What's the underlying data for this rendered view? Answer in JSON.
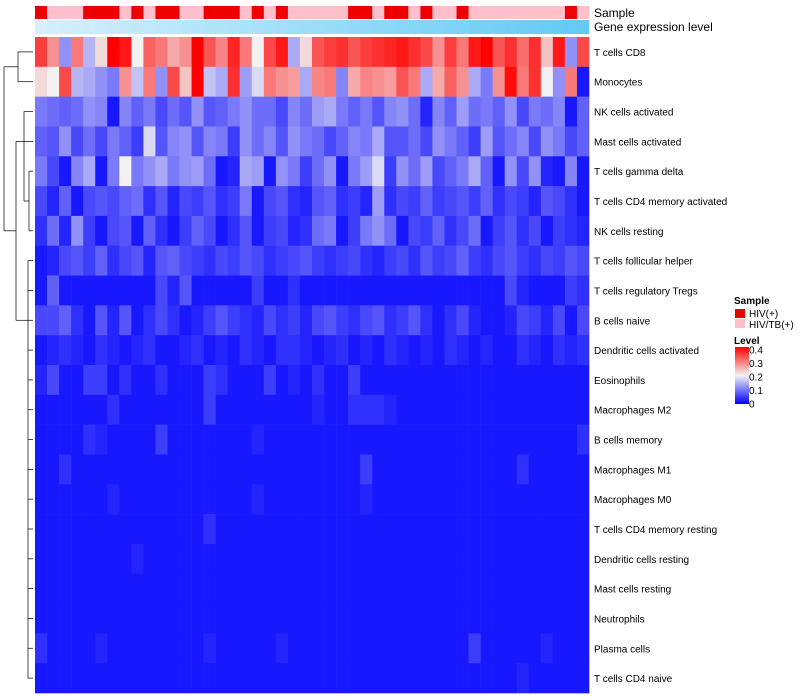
{
  "chart_data": {
    "type": "heatmap",
    "title": "",
    "row_labels": [
      "T cells CD8",
      "Monocytes",
      "NK cells activated",
      "Mast cells activated",
      "T cells gamma delta",
      "T cells CD4 memory activated",
      "NK cells resting",
      "T cells follicular helper",
      "T cells regulatory  Tregs",
      "B cells naive",
      "Dendritic cells activated",
      "Eosinophils",
      "Macrophages M2",
      "B cells memory",
      "Macrophages M1",
      "Macrophages M0",
      "T cells CD4 memory resting",
      "Dendritic cells resting",
      "Mast cells resting",
      "Neutrophils",
      "Plasma cells",
      "T cells CD4 naive"
    ],
    "annotation_rows": [
      "Sample",
      "Gene expression level"
    ],
    "sample_groups": [
      "HIV(+)",
      "HIV/TB(+)",
      "HIV/TB(+)",
      "HIV/TB(+)",
      "HIV(+)",
      "HIV(+)",
      "HIV(+)",
      "HIV/TB(+)",
      "HIV(+)",
      "HIV/TB(+)",
      "HIV(+)",
      "HIV(+)",
      "HIV/TB(+)",
      "HIV/TB(+)",
      "HIV(+)",
      "HIV(+)",
      "HIV(+)",
      "HIV/TB(+)",
      "HIV(+)",
      "HIV/TB(+)",
      "HIV(+)",
      "HIV/TB(+)",
      "HIV/TB(+)",
      "HIV/TB(+)",
      "HIV/TB(+)",
      "HIV/TB(+)",
      "HIV(+)",
      "HIV(+)",
      "HIV/TB(+)",
      "HIV(+)",
      "HIV(+)",
      "HIV/TB(+)",
      "HIV(+)",
      "HIV/TB(+)",
      "HIV/TB(+)",
      "HIV(+)",
      "HIV/TB(+)",
      "HIV/TB(+)",
      "HIV/TB(+)",
      "HIV/TB(+)",
      "HIV/TB(+)",
      "HIV/TB(+)",
      "HIV/TB(+)",
      "HIV/TB(+)",
      "HIV(+)",
      "HIV/TB(+)"
    ],
    "expression_level": [
      0.05,
      0.07,
      0.09,
      0.11,
      0.13,
      0.15,
      0.17,
      0.19,
      0.21,
      0.23,
      0.25,
      0.27,
      0.29,
      0.31,
      0.33,
      0.35,
      0.37,
      0.39,
      0.41,
      0.43,
      0.45,
      0.47,
      0.49,
      0.51,
      0.53,
      0.55,
      0.57,
      0.59,
      0.61,
      0.63,
      0.65,
      0.67,
      0.69,
      0.71,
      0.73,
      0.75,
      0.77,
      0.79,
      0.81,
      0.83,
      0.85,
      0.87,
      0.89,
      0.91,
      0.93,
      0.95
    ],
    "values": [
      [
        0.35,
        0.28,
        0.12,
        0.3,
        0.15,
        0.22,
        0.4,
        0.38,
        0.2,
        0.32,
        0.3,
        0.26,
        0.28,
        0.4,
        0.33,
        0.29,
        0.37,
        0.3,
        0.2,
        0.34,
        0.38,
        0.14,
        0.22,
        0.33,
        0.35,
        0.36,
        0.33,
        0.35,
        0.36,
        0.37,
        0.38,
        0.36,
        0.34,
        0.28,
        0.35,
        0.3,
        0.38,
        0.4,
        0.33,
        0.36,
        0.31,
        0.36,
        0.24,
        0.38,
        0.12,
        0.34
      ],
      [
        0.22,
        0.2,
        0.34,
        0.15,
        0.14,
        0.12,
        0.1,
        0.28,
        0.16,
        0.3,
        0.12,
        0.34,
        0.24,
        0.4,
        0.16,
        0.14,
        0.36,
        0.13,
        0.18,
        0.3,
        0.28,
        0.27,
        0.14,
        0.29,
        0.3,
        0.11,
        0.26,
        0.29,
        0.28,
        0.27,
        0.33,
        0.3,
        0.14,
        0.26,
        0.32,
        0.28,
        0.14,
        0.1,
        0.28,
        0.39,
        0.3,
        0.36,
        0.2,
        0.12,
        0.3,
        0.02
      ],
      [
        0.1,
        0.09,
        0.08,
        0.09,
        0.12,
        0.11,
        0.02,
        0.11,
        0.08,
        0.1,
        0.06,
        0.09,
        0.07,
        0.12,
        0.07,
        0.08,
        0.1,
        0.12,
        0.09,
        0.09,
        0.06,
        0.11,
        0.09,
        0.13,
        0.14,
        0.1,
        0.08,
        0.1,
        0.07,
        0.11,
        0.12,
        0.09,
        0.03,
        0.11,
        0.08,
        0.13,
        0.09,
        0.1,
        0.08,
        0.12,
        0.06,
        0.1,
        0.09,
        0.11,
        0.02,
        0.08
      ],
      [
        0.08,
        0.07,
        0.12,
        0.06,
        0.09,
        0.06,
        0.1,
        0.08,
        0.05,
        0.18,
        0.07,
        0.11,
        0.12,
        0.07,
        0.11,
        0.1,
        0.05,
        0.12,
        0.09,
        0.11,
        0.07,
        0.12,
        0.1,
        0.09,
        0.06,
        0.08,
        0.11,
        0.1,
        0.14,
        0.07,
        0.07,
        0.09,
        0.06,
        0.12,
        0.1,
        0.08,
        0.05,
        0.13,
        0.07,
        0.09,
        0.11,
        0.06,
        0.12,
        0.1,
        0.06,
        0.08
      ],
      [
        0.1,
        0.06,
        0.02,
        0.11,
        0.14,
        0.02,
        0.1,
        0.2,
        0.1,
        0.12,
        0.14,
        0.1,
        0.12,
        0.13,
        0.09,
        0.02,
        0.03,
        0.14,
        0.13,
        0.02,
        0.12,
        0.1,
        0.05,
        0.09,
        0.12,
        0.02,
        0.1,
        0.13,
        0.18,
        0.05,
        0.12,
        0.09,
        0.13,
        0.06,
        0.08,
        0.1,
        0.14,
        0.08,
        0.02,
        0.12,
        0.06,
        0.12,
        0.03,
        0.02,
        0.11,
        0.02
      ],
      [
        0.06,
        0.03,
        0.08,
        0.02,
        0.06,
        0.07,
        0.06,
        0.08,
        0.09,
        0.04,
        0.07,
        0.03,
        0.06,
        0.05,
        0.07,
        0.04,
        0.05,
        0.1,
        0.02,
        0.06,
        0.07,
        0.04,
        0.03,
        0.07,
        0.08,
        0.04,
        0.05,
        0.03,
        0.13,
        0.04,
        0.06,
        0.05,
        0.08,
        0.05,
        0.06,
        0.07,
        0.05,
        0.08,
        0.04,
        0.06,
        0.05,
        0.03,
        0.07,
        0.06,
        0.04,
        0.02
      ],
      [
        0.04,
        0.09,
        0.03,
        0.12,
        0.05,
        0.02,
        0.06,
        0.07,
        0.02,
        0.08,
        0.04,
        0.02,
        0.05,
        0.08,
        0.06,
        0.02,
        0.04,
        0.07,
        0.02,
        0.05,
        0.06,
        0.03,
        0.04,
        0.09,
        0.1,
        0.02,
        0.05,
        0.1,
        0.12,
        0.09,
        0.02,
        0.06,
        0.05,
        0.08,
        0.04,
        0.06,
        0.09,
        0.02,
        0.05,
        0.07,
        0.04,
        0.06,
        0.02,
        0.05,
        0.04,
        0.03
      ],
      [
        0.02,
        0.03,
        0.06,
        0.07,
        0.05,
        0.08,
        0.04,
        0.06,
        0.07,
        0.03,
        0.07,
        0.08,
        0.06,
        0.05,
        0.04,
        0.06,
        0.05,
        0.07,
        0.06,
        0.04,
        0.05,
        0.06,
        0.07,
        0.05,
        0.04,
        0.05,
        0.06,
        0.04,
        0.03,
        0.05,
        0.06,
        0.04,
        0.07,
        0.05,
        0.06,
        0.08,
        0.05,
        0.04,
        0.06,
        0.07,
        0.05,
        0.04,
        0.06,
        0.05,
        0.07,
        0.06
      ],
      [
        0.02,
        0.08,
        0.02,
        0.02,
        0.02,
        0.02,
        0.02,
        0.02,
        0.02,
        0.02,
        0.06,
        0.03,
        0.07,
        0.02,
        0.02,
        0.02,
        0.02,
        0.02,
        0.05,
        0.02,
        0.02,
        0.04,
        0.02,
        0.02,
        0.02,
        0.02,
        0.02,
        0.02,
        0.02,
        0.02,
        0.02,
        0.02,
        0.02,
        0.02,
        0.02,
        0.02,
        0.02,
        0.02,
        0.02,
        0.06,
        0.03,
        0.02,
        0.02,
        0.02,
        0.05,
        0.04
      ],
      [
        0.06,
        0.06,
        0.08,
        0.04,
        0.02,
        0.07,
        0.03,
        0.07,
        0.02,
        0.04,
        0.06,
        0.04,
        0.02,
        0.03,
        0.05,
        0.07,
        0.05,
        0.04,
        0.03,
        0.06,
        0.04,
        0.05,
        0.03,
        0.06,
        0.07,
        0.05,
        0.04,
        0.06,
        0.07,
        0.04,
        0.05,
        0.07,
        0.04,
        0.02,
        0.04,
        0.06,
        0.03,
        0.02,
        0.02,
        0.03,
        0.06,
        0.05,
        0.03,
        0.06,
        0.02,
        0.06
      ],
      [
        0.02,
        0.03,
        0.04,
        0.03,
        0.02,
        0.04,
        0.03,
        0.02,
        0.03,
        0.04,
        0.02,
        0.02,
        0.03,
        0.04,
        0.02,
        0.03,
        0.02,
        0.04,
        0.03,
        0.02,
        0.04,
        0.04,
        0.03,
        0.02,
        0.03,
        0.04,
        0.02,
        0.03,
        0.02,
        0.04,
        0.03,
        0.02,
        0.03,
        0.02,
        0.04,
        0.03,
        0.02,
        0.03,
        0.02,
        0.02,
        0.04,
        0.03,
        0.02,
        0.04,
        0.03,
        0.04
      ],
      [
        0.03,
        0.06,
        0.02,
        0.02,
        0.05,
        0.05,
        0.02,
        0.04,
        0.02,
        0.02,
        0.04,
        0.02,
        0.02,
        0.02,
        0.05,
        0.04,
        0.02,
        0.02,
        0.02,
        0.05,
        0.02,
        0.03,
        0.02,
        0.04,
        0.02,
        0.02,
        0.05,
        0.02,
        0.02,
        0.02,
        0.02,
        0.02,
        0.02,
        0.02,
        0.02,
        0.02,
        0.02,
        0.02,
        0.02,
        0.02,
        0.02,
        0.02,
        0.02,
        0.02,
        0.02,
        0.02
      ],
      [
        0.02,
        0.02,
        0.02,
        0.02,
        0.02,
        0.02,
        0.04,
        0.02,
        0.02,
        0.02,
        0.02,
        0.02,
        0.02,
        0.02,
        0.05,
        0.02,
        0.02,
        0.02,
        0.02,
        0.02,
        0.02,
        0.02,
        0.02,
        0.03,
        0.02,
        0.02,
        0.04,
        0.04,
        0.04,
        0.03,
        0.02,
        0.02,
        0.02,
        0.02,
        0.02,
        0.02,
        0.02,
        0.02,
        0.02,
        0.02,
        0.02,
        0.02,
        0.02,
        0.02,
        0.02,
        0.02
      ],
      [
        0.02,
        0.02,
        0.02,
        0.02,
        0.04,
        0.03,
        0.02,
        0.02,
        0.02,
        0.02,
        0.05,
        0.02,
        0.02,
        0.02,
        0.02,
        0.02,
        0.02,
        0.02,
        0.03,
        0.02,
        0.02,
        0.02,
        0.02,
        0.02,
        0.02,
        0.02,
        0.02,
        0.02,
        0.02,
        0.02,
        0.02,
        0.02,
        0.02,
        0.02,
        0.02,
        0.02,
        0.02,
        0.02,
        0.02,
        0.02,
        0.02,
        0.02,
        0.02,
        0.02,
        0.02,
        0.04
      ],
      [
        0.02,
        0.02,
        0.04,
        0.02,
        0.02,
        0.02,
        0.02,
        0.02,
        0.02,
        0.02,
        0.02,
        0.02,
        0.02,
        0.02,
        0.02,
        0.02,
        0.02,
        0.02,
        0.02,
        0.02,
        0.02,
        0.02,
        0.02,
        0.02,
        0.02,
        0.02,
        0.02,
        0.05,
        0.02,
        0.02,
        0.02,
        0.02,
        0.02,
        0.02,
        0.02,
        0.02,
        0.02,
        0.02,
        0.02,
        0.02,
        0.04,
        0.02,
        0.02,
        0.02,
        0.02,
        0.02
      ],
      [
        0.02,
        0.02,
        0.02,
        0.02,
        0.02,
        0.02,
        0.03,
        0.02,
        0.02,
        0.02,
        0.02,
        0.02,
        0.02,
        0.02,
        0.02,
        0.02,
        0.02,
        0.02,
        0.03,
        0.02,
        0.02,
        0.02,
        0.02,
        0.02,
        0.02,
        0.02,
        0.02,
        0.03,
        0.02,
        0.02,
        0.02,
        0.02,
        0.02,
        0.02,
        0.02,
        0.02,
        0.02,
        0.02,
        0.02,
        0.02,
        0.02,
        0.02,
        0.02,
        0.02,
        0.02,
        0.02
      ],
      [
        0.02,
        0.02,
        0.02,
        0.02,
        0.02,
        0.02,
        0.02,
        0.02,
        0.02,
        0.02,
        0.02,
        0.02,
        0.02,
        0.02,
        0.04,
        0.02,
        0.02,
        0.02,
        0.02,
        0.02,
        0.02,
        0.02,
        0.02,
        0.02,
        0.02,
        0.02,
        0.02,
        0.02,
        0.02,
        0.02,
        0.02,
        0.02,
        0.02,
        0.02,
        0.02,
        0.02,
        0.02,
        0.02,
        0.02,
        0.02,
        0.02,
        0.02,
        0.02,
        0.02,
        0.02,
        0.02
      ],
      [
        0.02,
        0.02,
        0.02,
        0.02,
        0.02,
        0.02,
        0.02,
        0.02,
        0.03,
        0.02,
        0.02,
        0.02,
        0.02,
        0.02,
        0.02,
        0.02,
        0.02,
        0.02,
        0.02,
        0.02,
        0.02,
        0.02,
        0.02,
        0.02,
        0.02,
        0.02,
        0.02,
        0.02,
        0.02,
        0.02,
        0.02,
        0.02,
        0.02,
        0.02,
        0.02,
        0.02,
        0.02,
        0.02,
        0.02,
        0.02,
        0.02,
        0.02,
        0.02,
        0.02,
        0.02,
        0.02
      ],
      [
        0.02,
        0.02,
        0.02,
        0.02,
        0.02,
        0.02,
        0.02,
        0.02,
        0.02,
        0.02,
        0.02,
        0.02,
        0.02,
        0.02,
        0.02,
        0.02,
        0.02,
        0.02,
        0.02,
        0.02,
        0.02,
        0.02,
        0.02,
        0.02,
        0.02,
        0.02,
        0.02,
        0.02,
        0.02,
        0.02,
        0.02,
        0.02,
        0.02,
        0.02,
        0.02,
        0.02,
        0.02,
        0.02,
        0.02,
        0.02,
        0.02,
        0.02,
        0.02,
        0.02,
        0.02,
        0.02
      ],
      [
        0.02,
        0.02,
        0.02,
        0.02,
        0.02,
        0.02,
        0.02,
        0.02,
        0.02,
        0.02,
        0.02,
        0.02,
        0.02,
        0.02,
        0.02,
        0.02,
        0.02,
        0.02,
        0.02,
        0.02,
        0.02,
        0.02,
        0.02,
        0.02,
        0.02,
        0.02,
        0.02,
        0.02,
        0.02,
        0.02,
        0.02,
        0.02,
        0.02,
        0.02,
        0.02,
        0.02,
        0.02,
        0.02,
        0.02,
        0.02,
        0.02,
        0.02,
        0.02,
        0.02,
        0.02,
        0.02
      ],
      [
        0.04,
        0.02,
        0.02,
        0.02,
        0.02,
        0.03,
        0.02,
        0.02,
        0.02,
        0.02,
        0.02,
        0.02,
        0.02,
        0.02,
        0.03,
        0.02,
        0.02,
        0.02,
        0.02,
        0.02,
        0.03,
        0.02,
        0.02,
        0.02,
        0.02,
        0.02,
        0.02,
        0.02,
        0.02,
        0.02,
        0.02,
        0.02,
        0.02,
        0.02,
        0.02,
        0.02,
        0.05,
        0.02,
        0.02,
        0.02,
        0.02,
        0.02,
        0.03,
        0.02,
        0.02,
        0.02
      ],
      [
        0.02,
        0.02,
        0.02,
        0.02,
        0.02,
        0.02,
        0.02,
        0.02,
        0.02,
        0.02,
        0.02,
        0.02,
        0.02,
        0.02,
        0.02,
        0.02,
        0.02,
        0.02,
        0.02,
        0.02,
        0.02,
        0.02,
        0.02,
        0.02,
        0.02,
        0.02,
        0.02,
        0.02,
        0.02,
        0.02,
        0.02,
        0.02,
        0.02,
        0.02,
        0.02,
        0.02,
        0.02,
        0.02,
        0.02,
        0.02,
        0.03,
        0.02,
        0.02,
        0.02,
        0.02,
        0.02
      ]
    ],
    "dendrogram_merges": [
      [
        0,
        1,
        0.6
      ],
      [
        5,
        6,
        0.3
      ],
      [
        3,
        4,
        0.25
      ],
      [
        9,
        10,
        0.2
      ],
      [
        2,
        3,
        0.15
      ]
    ],
    "legend": {
      "sample_title": "Sample",
      "sample_entries": [
        {
          "label": "HIV(+)",
          "color": "#ee0000"
        },
        {
          "label": "HIV/TB(+)",
          "color": "#ffc0cb"
        }
      ],
      "level_title": "Level",
      "level_ticks": [
        "0.4",
        "0.3",
        "0.2",
        "0.1",
        "0"
      ],
      "level_range": [
        0,
        0.4
      ]
    },
    "colors": {
      "low": "#0000ff",
      "mid": "#f2f2f2",
      "high": "#ff0000",
      "expression_low": "#ddf2fb",
      "expression_high": "#5bc8f5"
    }
  }
}
